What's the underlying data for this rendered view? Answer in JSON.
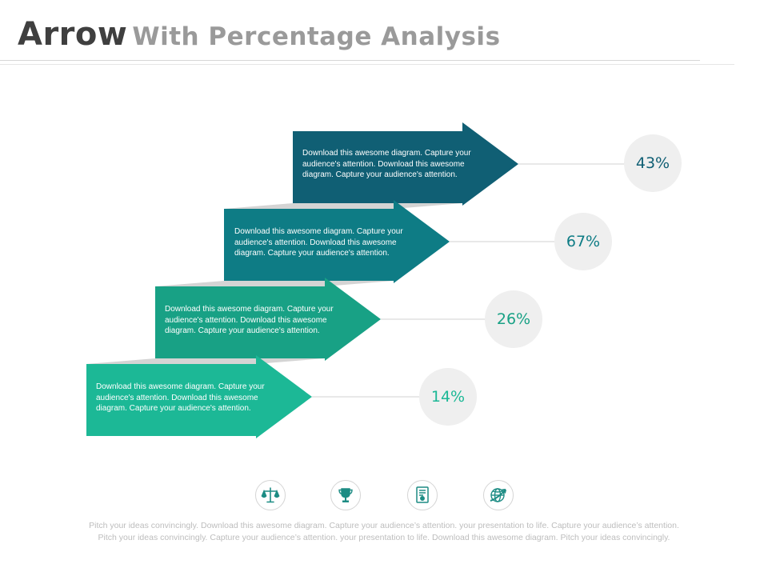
{
  "title": {
    "main": "Arrow",
    "rest": "With Percentage Analysis"
  },
  "arrows": [
    {
      "text": "Download this awesome diagram. Capture your audience's attention.  Download this awesome diagram. Capture your audience's attention.",
      "percentage": "43%",
      "value": 43,
      "color": "#105f74"
    },
    {
      "text": "Download this awesome diagram. Capture your audience's attention. Download this awesome diagram. Capture your audience's attention.",
      "percentage": "67%",
      "value": 67,
      "color": "#0e7c85"
    },
    {
      "text": "Download this awesome diagram. Capture your audience's attention. Download this awesome diagram. Capture your audience's attention.",
      "percentage": "26%",
      "value": 26,
      "color": "#18a185"
    },
    {
      "text": "Download this awesome diagram. Capture your audience's attention. Download this awesome diagram. Capture your audience's attention.",
      "percentage": "14%",
      "value": 14,
      "color": "#1cb896"
    }
  ],
  "shadow_color": "#d4d4d4",
  "icons": [
    {
      "name": "scales-icon"
    },
    {
      "name": "trophy-icon"
    },
    {
      "name": "certificate-icon"
    },
    {
      "name": "globe-arrow-icon"
    }
  ],
  "icon_color": "#1d8c84",
  "footer": {
    "line1": "Pitch your ideas convincingly. Download this awesome diagram. Capture your audience’s attention. your presentation to life. Capture your audience’s attention.",
    "line2": "Pitch your ideas convincingly. Capture your audience’s attention. your presentation to life. Download this awesome diagram. Pitch your ideas convincingly."
  }
}
